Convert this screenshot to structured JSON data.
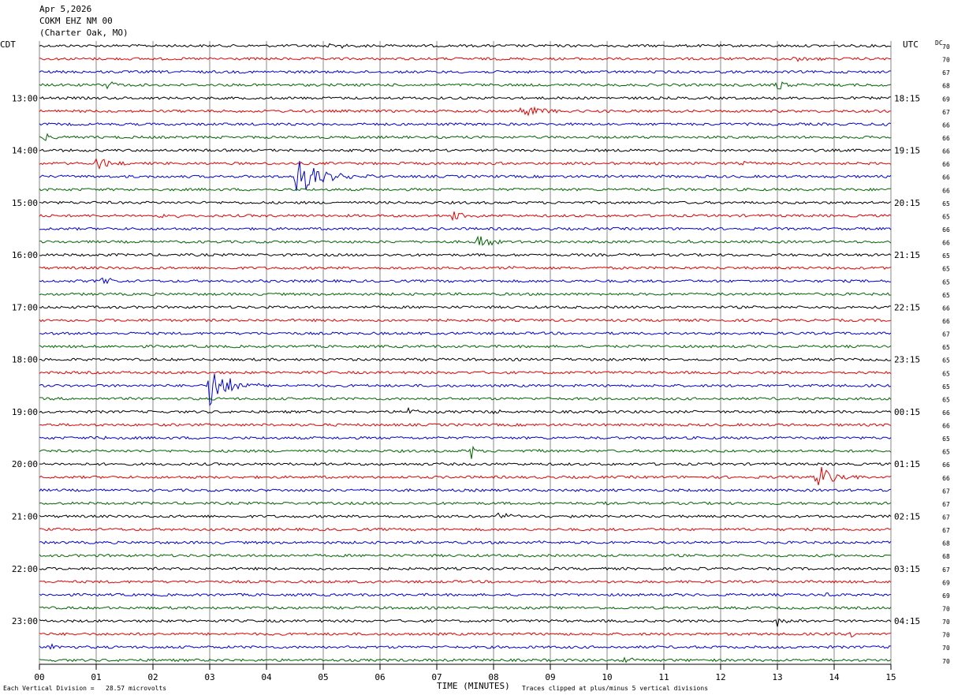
{
  "header": {
    "date": "Apr 5,2026",
    "station": "COKM EHZ NM 00",
    "location": "(Charter Oak, MO)"
  },
  "left_zone": "CDT",
  "right_zone": "UTC",
  "dc_label": "DC",
  "footer": {
    "scale_text": "Each Vertical Division =   28.57 microvolts",
    "xlabel": "TIME (MINUTES)",
    "clip_text": "Traces clipped at plus/minus 5 vertical divisions"
  },
  "colors": {
    "trace_cycle": [
      "#000000",
      "#e00000",
      "#0000d0",
      "#006400"
    ],
    "grid": "#888888",
    "axis": "#000000"
  },
  "chart_data": {
    "type": "line",
    "title": "",
    "xlabel": "TIME (MINUTES)",
    "x_ticks": [
      "00",
      "01",
      "02",
      "03",
      "04",
      "05",
      "06",
      "07",
      "08",
      "09",
      "10",
      "11",
      "12",
      "13",
      "14",
      "15"
    ],
    "xlim": [
      0,
      15
    ],
    "rows_count": 48,
    "rows_per_hour": 4,
    "left_hour_labels": [
      "13:00",
      "14:00",
      "15:00",
      "16:00",
      "17:00",
      "18:00",
      "19:00",
      "20:00",
      "21:00",
      "22:00",
      "23:00"
    ],
    "right_hour_labels": [
      "18:15",
      "19:15",
      "20:15",
      "21:15",
      "22:15",
      "23:15",
      "00:15",
      "01:15",
      "02:15",
      "03:15",
      "04:15"
    ],
    "dc_offsets": [
      70,
      70,
      67,
      68,
      69,
      67,
      66,
      66,
      66,
      66,
      66,
      66,
      65,
      65,
      66,
      66,
      65,
      65,
      65,
      65,
      66,
      66,
      67,
      65,
      65,
      65,
      65,
      65,
      66,
      66,
      65,
      65,
      66,
      66,
      67,
      67,
      67,
      67,
      68,
      68,
      67,
      69,
      69,
      70,
      70,
      70,
      70,
      70
    ],
    "events": [
      {
        "row": 0,
        "minute": 5.0,
        "amp": 3,
        "dur": 1.8
      },
      {
        "row": 1,
        "minute": 13.3,
        "amp": 4,
        "dur": 0.8
      },
      {
        "row": 3,
        "minute": 1.2,
        "amp": 6,
        "dur": 0.4
      },
      {
        "row": 3,
        "minute": 13.0,
        "amp": 7,
        "dur": 0.8
      },
      {
        "row": 5,
        "minute": 8.5,
        "amp": 10,
        "dur": 1.0
      },
      {
        "row": 6,
        "minute": 14.8,
        "amp": 7,
        "dur": 0.4
      },
      {
        "row": 7,
        "minute": 0.1,
        "amp": 4,
        "dur": 0.3
      },
      {
        "row": 9,
        "minute": 1.0,
        "amp": 9,
        "dur": 0.7
      },
      {
        "row": 9,
        "minute": 12.4,
        "amp": 4,
        "dur": 0.3
      },
      {
        "row": 10,
        "minute": 4.5,
        "amp": 24,
        "dur": 1.4
      },
      {
        "row": 13,
        "minute": 2.1,
        "amp": 5,
        "dur": 0.6
      },
      {
        "row": 13,
        "minute": 7.3,
        "amp": 7,
        "dur": 0.6
      },
      {
        "row": 15,
        "minute": 7.7,
        "amp": 9,
        "dur": 0.6
      },
      {
        "row": 15,
        "minute": 11.4,
        "amp": 3,
        "dur": 0.6
      },
      {
        "row": 17,
        "minute": 8.3,
        "amp": 4,
        "dur": 0.3
      },
      {
        "row": 18,
        "minute": 1.1,
        "amp": 6,
        "dur": 0.4
      },
      {
        "row": 26,
        "minute": 3.0,
        "amp": 28,
        "dur": 0.9
      },
      {
        "row": 28,
        "minute": 6.5,
        "amp": 6,
        "dur": 0.4
      },
      {
        "row": 28,
        "minute": 8.0,
        "amp": 3,
        "dur": 0.5
      },
      {
        "row": 30,
        "minute": 1.0,
        "amp": 3,
        "dur": 0.5
      },
      {
        "row": 31,
        "minute": 7.6,
        "amp": 14,
        "dur": 0.12
      },
      {
        "row": 31,
        "minute": 8.8,
        "amp": 8,
        "dur": 0.12
      },
      {
        "row": 33,
        "minute": 13.7,
        "amp": 16,
        "dur": 0.9
      },
      {
        "row": 35,
        "minute": 10.0,
        "amp": 4,
        "dur": 0.2
      },
      {
        "row": 36,
        "minute": 8.0,
        "amp": 4,
        "dur": 1.6
      },
      {
        "row": 38,
        "minute": 8.8,
        "amp": 4,
        "dur": 0.3
      },
      {
        "row": 40,
        "minute": 7.8,
        "amp": 5,
        "dur": 0.2
      },
      {
        "row": 42,
        "minute": 13.9,
        "amp": 5,
        "dur": 0.15
      },
      {
        "row": 44,
        "minute": 13.0,
        "amp": 7,
        "dur": 0.5
      },
      {
        "row": 45,
        "minute": 14.3,
        "amp": 4,
        "dur": 0.3
      },
      {
        "row": 46,
        "minute": 0.2,
        "amp": 4,
        "dur": 0.3
      },
      {
        "row": 46,
        "minute": 12.6,
        "amp": 3,
        "dur": 0.1
      },
      {
        "row": 47,
        "minute": 10.3,
        "amp": 4,
        "dur": 0.6
      }
    ]
  }
}
